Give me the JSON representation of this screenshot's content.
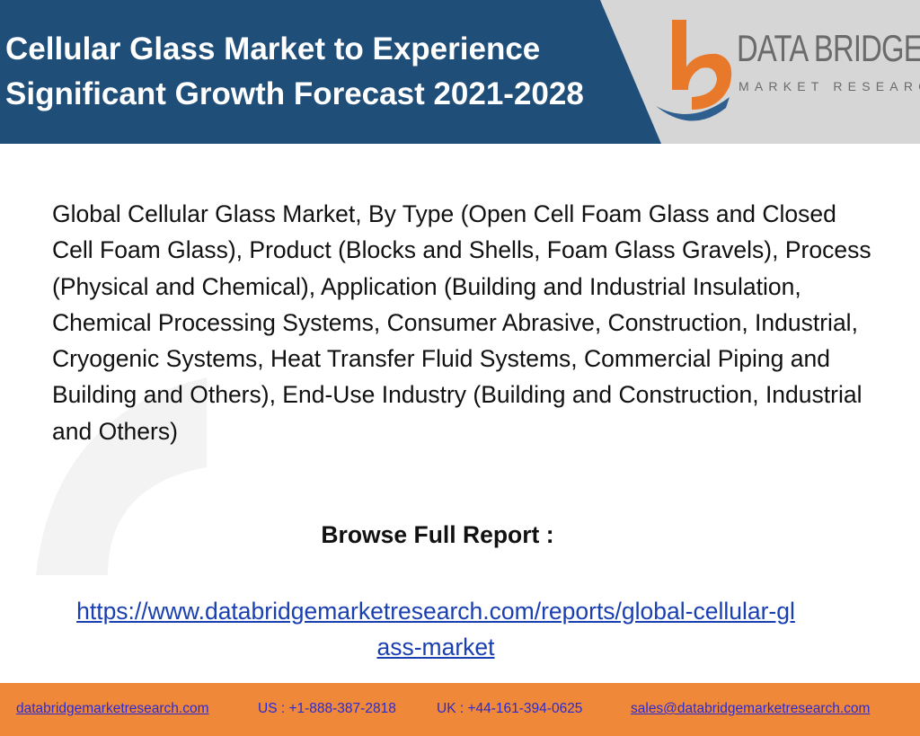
{
  "header": {
    "title": "Cellular Glass Market to Experience Significant Growth Forecast 2021-2028",
    "logo_name": "DATA BRIDGE",
    "logo_tagline": "MARKET RESEARCH"
  },
  "body": {
    "description": "Global Cellular Glass Market, By Type (Open Cell Foam Glass and Closed Cell Foam Glass), Product (Blocks and Shells, Foam Glass Gravels), Process (Physical and Chemical), Application (Building and Industrial Insulation, Chemical Processing Systems, Consumer Abrasive, Construction, Industrial, Cryogenic Systems, Heat Transfer Fluid Systems, Commercial Piping and Building and Others), End-Use Industry (Building and Construction, Industrial and Others)",
    "browse_label": "Browse Full Report :",
    "report_link": "https://www.databridgemarketresearch.com/reports/global-cellular-glass-market"
  },
  "footer": {
    "website": "databridgemarketresearch.com",
    "us_phone": "US : +1-888-387-2818",
    "uk_phone": "UK : +44-161-394-0625",
    "email": "sales@databridgemarketresearch.com"
  }
}
